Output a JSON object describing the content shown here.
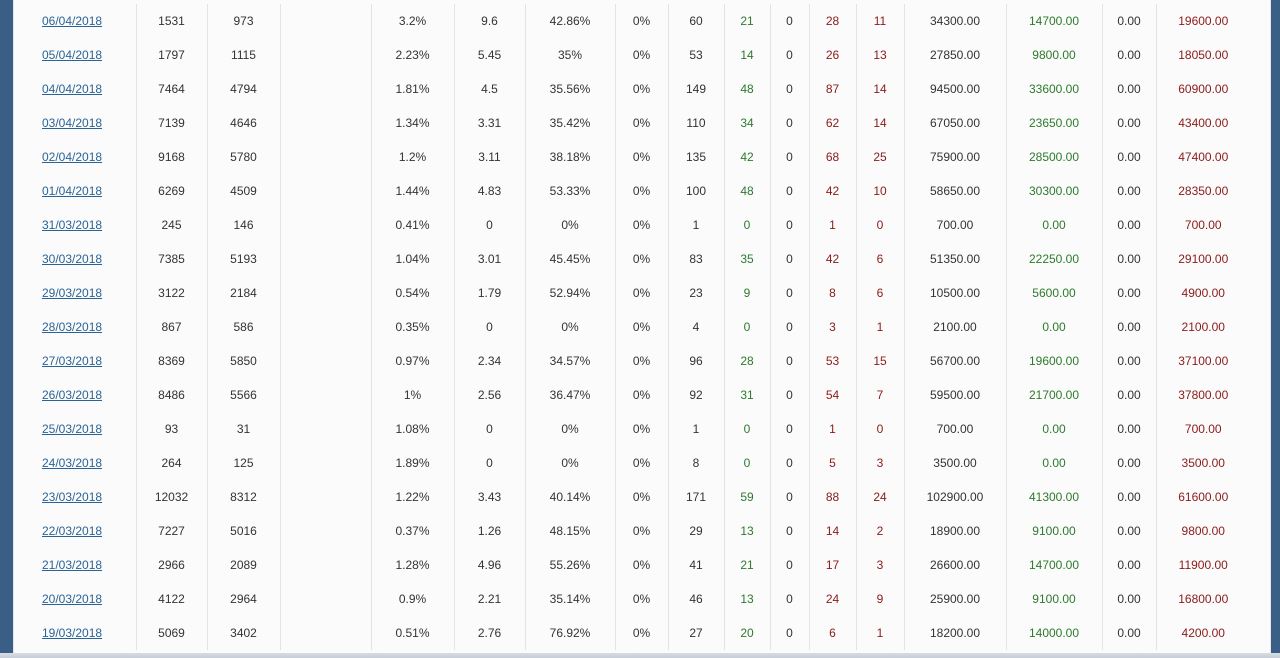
{
  "colors": {
    "link": "#2a6496",
    "positive_green": "#2d7a2d",
    "negative_red": "#8b1a1a",
    "frame_blue": "#3a5f86"
  },
  "table": {
    "rows": [
      {
        "date": "06/04/2018",
        "c1": "1531",
        "c2": "973",
        "c3": "",
        "c4": "3.2%",
        "c5": "9.6",
        "c6": "42.86%",
        "c7": "0%",
        "c8": "60",
        "c9": "21",
        "c10": "0",
        "c11": "28",
        "c12": "11",
        "c13": "34300.00",
        "c14": "14700.00",
        "c15": "0.00",
        "c16": "19600.00"
      },
      {
        "date": "05/04/2018",
        "c1": "1797",
        "c2": "1115",
        "c3": "",
        "c4": "2.23%",
        "c5": "5.45",
        "c6": "35%",
        "c7": "0%",
        "c8": "53",
        "c9": "14",
        "c10": "0",
        "c11": "26",
        "c12": "13",
        "c13": "27850.00",
        "c14": "9800.00",
        "c15": "0.00",
        "c16": "18050.00"
      },
      {
        "date": "04/04/2018",
        "c1": "7464",
        "c2": "4794",
        "c3": "",
        "c4": "1.81%",
        "c5": "4.5",
        "c6": "35.56%",
        "c7": "0%",
        "c8": "149",
        "c9": "48",
        "c10": "0",
        "c11": "87",
        "c12": "14",
        "c13": "94500.00",
        "c14": "33600.00",
        "c15": "0.00",
        "c16": "60900.00"
      },
      {
        "date": "03/04/2018",
        "c1": "7139",
        "c2": "4646",
        "c3": "",
        "c4": "1.34%",
        "c5": "3.31",
        "c6": "35.42%",
        "c7": "0%",
        "c8": "110",
        "c9": "34",
        "c10": "0",
        "c11": "62",
        "c12": "14",
        "c13": "67050.00",
        "c14": "23650.00",
        "c15": "0.00",
        "c16": "43400.00"
      },
      {
        "date": "02/04/2018",
        "c1": "9168",
        "c2": "5780",
        "c3": "",
        "c4": "1.2%",
        "c5": "3.11",
        "c6": "38.18%",
        "c7": "0%",
        "c8": "135",
        "c9": "42",
        "c10": "0",
        "c11": "68",
        "c12": "25",
        "c13": "75900.00",
        "c14": "28500.00",
        "c15": "0.00",
        "c16": "47400.00"
      },
      {
        "date": "01/04/2018",
        "c1": "6269",
        "c2": "4509",
        "c3": "",
        "c4": "1.44%",
        "c5": "4.83",
        "c6": "53.33%",
        "c7": "0%",
        "c8": "100",
        "c9": "48",
        "c10": "0",
        "c11": "42",
        "c12": "10",
        "c13": "58650.00",
        "c14": "30300.00",
        "c15": "0.00",
        "c16": "28350.00"
      },
      {
        "date": "31/03/2018",
        "c1": "245",
        "c2": "146",
        "c3": "",
        "c4": "0.41%",
        "c5": "0",
        "c6": "0%",
        "c7": "0%",
        "c8": "1",
        "c9": "0",
        "c10": "0",
        "c11": "1",
        "c12": "0",
        "c13": "700.00",
        "c14": "0.00",
        "c15": "0.00",
        "c16": "700.00"
      },
      {
        "date": "30/03/2018",
        "c1": "7385",
        "c2": "5193",
        "c3": "",
        "c4": "1.04%",
        "c5": "3.01",
        "c6": "45.45%",
        "c7": "0%",
        "c8": "83",
        "c9": "35",
        "c10": "0",
        "c11": "42",
        "c12": "6",
        "c13": "51350.00",
        "c14": "22250.00",
        "c15": "0.00",
        "c16": "29100.00"
      },
      {
        "date": "29/03/2018",
        "c1": "3122",
        "c2": "2184",
        "c3": "",
        "c4": "0.54%",
        "c5": "1.79",
        "c6": "52.94%",
        "c7": "0%",
        "c8": "23",
        "c9": "9",
        "c10": "0",
        "c11": "8",
        "c12": "6",
        "c13": "10500.00",
        "c14": "5600.00",
        "c15": "0.00",
        "c16": "4900.00"
      },
      {
        "date": "28/03/2018",
        "c1": "867",
        "c2": "586",
        "c3": "",
        "c4": "0.35%",
        "c5": "0",
        "c6": "0%",
        "c7": "0%",
        "c8": "4",
        "c9": "0",
        "c10": "0",
        "c11": "3",
        "c12": "1",
        "c13": "2100.00",
        "c14": "0.00",
        "c15": "0.00",
        "c16": "2100.00"
      },
      {
        "date": "27/03/2018",
        "c1": "8369",
        "c2": "5850",
        "c3": "",
        "c4": "0.97%",
        "c5": "2.34",
        "c6": "34.57%",
        "c7": "0%",
        "c8": "96",
        "c9": "28",
        "c10": "0",
        "c11": "53",
        "c12": "15",
        "c13": "56700.00",
        "c14": "19600.00",
        "c15": "0.00",
        "c16": "37100.00"
      },
      {
        "date": "26/03/2018",
        "c1": "8486",
        "c2": "5566",
        "c3": "",
        "c4": "1%",
        "c5": "2.56",
        "c6": "36.47%",
        "c7": "0%",
        "c8": "92",
        "c9": "31",
        "c10": "0",
        "c11": "54",
        "c12": "7",
        "c13": "59500.00",
        "c14": "21700.00",
        "c15": "0.00",
        "c16": "37800.00"
      },
      {
        "date": "25/03/2018",
        "c1": "93",
        "c2": "31",
        "c3": "",
        "c4": "1.08%",
        "c5": "0",
        "c6": "0%",
        "c7": "0%",
        "c8": "1",
        "c9": "0",
        "c10": "0",
        "c11": "1",
        "c12": "0",
        "c13": "700.00",
        "c14": "0.00",
        "c15": "0.00",
        "c16": "700.00"
      },
      {
        "date": "24/03/2018",
        "c1": "264",
        "c2": "125",
        "c3": "",
        "c4": "1.89%",
        "c5": "0",
        "c6": "0%",
        "c7": "0%",
        "c8": "8",
        "c9": "0",
        "c10": "0",
        "c11": "5",
        "c12": "3",
        "c13": "3500.00",
        "c14": "0.00",
        "c15": "0.00",
        "c16": "3500.00"
      },
      {
        "date": "23/03/2018",
        "c1": "12032",
        "c2": "8312",
        "c3": "",
        "c4": "1.22%",
        "c5": "3.43",
        "c6": "40.14%",
        "c7": "0%",
        "c8": "171",
        "c9": "59",
        "c10": "0",
        "c11": "88",
        "c12": "24",
        "c13": "102900.00",
        "c14": "41300.00",
        "c15": "0.00",
        "c16": "61600.00"
      },
      {
        "date": "22/03/2018",
        "c1": "7227",
        "c2": "5016",
        "c3": "",
        "c4": "0.37%",
        "c5": "1.26",
        "c6": "48.15%",
        "c7": "0%",
        "c8": "29",
        "c9": "13",
        "c10": "0",
        "c11": "14",
        "c12": "2",
        "c13": "18900.00",
        "c14": "9100.00",
        "c15": "0.00",
        "c16": "9800.00"
      },
      {
        "date": "21/03/2018",
        "c1": "2966",
        "c2": "2089",
        "c3": "",
        "c4": "1.28%",
        "c5": "4.96",
        "c6": "55.26%",
        "c7": "0%",
        "c8": "41",
        "c9": "21",
        "c10": "0",
        "c11": "17",
        "c12": "3",
        "c13": "26600.00",
        "c14": "14700.00",
        "c15": "0.00",
        "c16": "11900.00"
      },
      {
        "date": "20/03/2018",
        "c1": "4122",
        "c2": "2964",
        "c3": "",
        "c4": "0.9%",
        "c5": "2.21",
        "c6": "35.14%",
        "c7": "0%",
        "c8": "46",
        "c9": "13",
        "c10": "0",
        "c11": "24",
        "c12": "9",
        "c13": "25900.00",
        "c14": "9100.00",
        "c15": "0.00",
        "c16": "16800.00"
      },
      {
        "date": "19/03/2018",
        "c1": "5069",
        "c2": "3402",
        "c3": "",
        "c4": "0.51%",
        "c5": "2.76",
        "c6": "76.92%",
        "c7": "0%",
        "c8": "27",
        "c9": "20",
        "c10": "0",
        "c11": "6",
        "c12": "1",
        "c13": "18200.00",
        "c14": "14000.00",
        "c15": "0.00",
        "c16": "4200.00"
      }
    ]
  }
}
